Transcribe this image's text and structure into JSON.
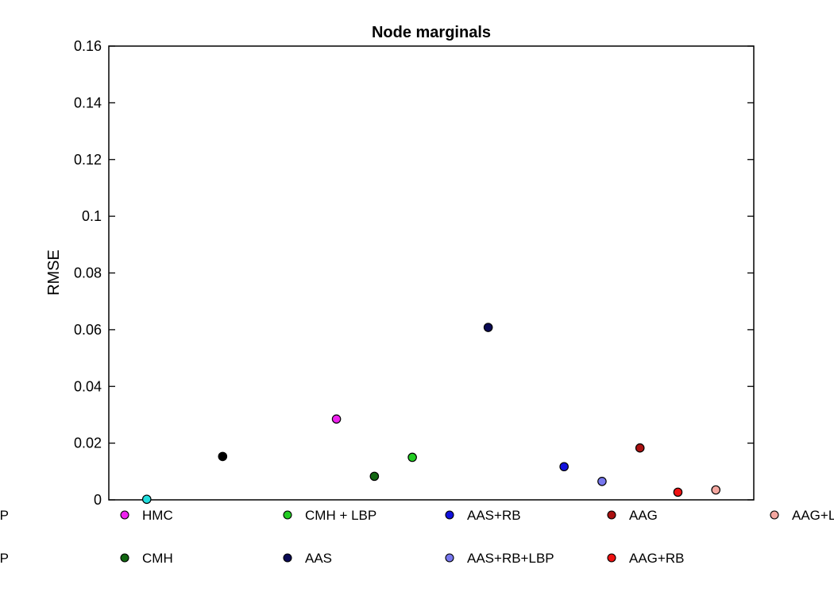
{
  "chart_data": {
    "type": "scatter",
    "title": "Node marginals",
    "xlabel": "",
    "ylabel": "RMSE",
    "ylim": [
      0,
      0.16
    ],
    "xlim": [
      0,
      17
    ],
    "y_ticks": [
      "0",
      "0.02",
      "0.04",
      "0.06",
      "0.08",
      "0.1",
      "0.12",
      "0.14",
      "0.16"
    ],
    "grid": false,
    "legend_position": "bottom",
    "series": [
      {
        "name": "HMC",
        "color": "#ee22ee",
        "x": 6,
        "y": 0.0285
      },
      {
        "name": "CMH + LBP",
        "color": "#22cc22",
        "x": 8,
        "y": 0.015
      },
      {
        "name": "AAS+RB",
        "color": "#1111dd",
        "x": 12,
        "y": 0.0117
      },
      {
        "name": "AAG",
        "color": "#aa1111",
        "x": 14,
        "y": 0.0183
      },
      {
        "name": "AAG+LBP",
        "color": "#f4a7a0",
        "x": 16,
        "y": 0.0035
      },
      {
        "name": "CMH",
        "color": "#116611",
        "x": 7,
        "y": 0.0083
      },
      {
        "name": "AAS",
        "color": "#0a0a55",
        "x": 10,
        "y": 0.0608
      },
      {
        "name": "AAS+RB+LBP",
        "color": "#7777ee",
        "x": 13,
        "y": 0.0065
      },
      {
        "name": "AAG+RB",
        "color": "#ee1111",
        "x": 15,
        "y": 0.0027
      }
    ],
    "legend_partial": [
      {
        "label": "P",
        "row": 1
      },
      {
        "label": "H-LBP",
        "row": 2
      }
    ],
    "unlabeled_points": [
      {
        "color": "#22dddd",
        "x": 1,
        "y": 0.0002
      },
      {
        "color": "#000000",
        "x": 3,
        "y": 0.0153
      }
    ]
  }
}
